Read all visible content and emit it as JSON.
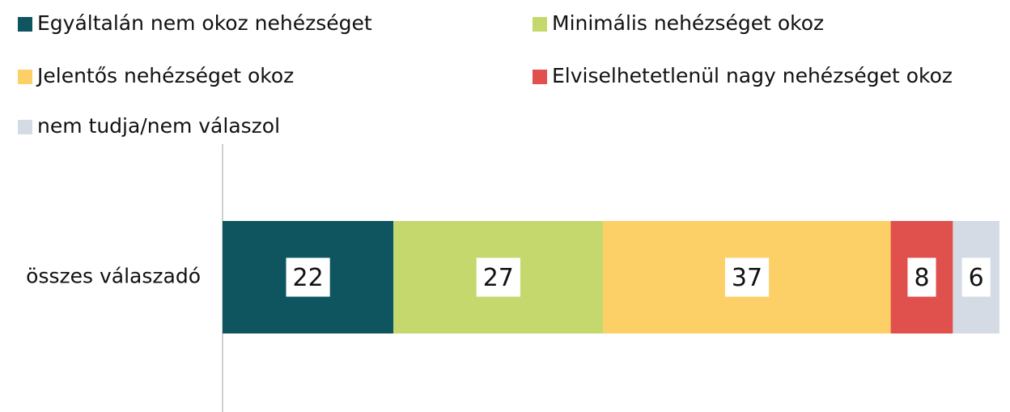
{
  "chart_data": {
    "type": "stacked-bar-horizontal",
    "categories": [
      "összes válaszadó"
    ],
    "series": [
      {
        "name": "Egyáltalán nem okoz nehézséget",
        "color": "#0e5560",
        "values": [
          22
        ]
      },
      {
        "name": "Minimális nehézséget okoz",
        "color": "#c5d86d",
        "values": [
          27
        ]
      },
      {
        "name": "Jelentős nehézséget okoz",
        "color": "#fdcf67",
        "values": [
          37
        ]
      },
      {
        "name": "Elviselhetetlenül nagy nehézséget okoz",
        "color": "#e0504d",
        "values": [
          8
        ]
      },
      {
        "name": "nem tudja/nem válaszol",
        "color": "#d5dbe5",
        "values": [
          6
        ]
      }
    ],
    "xlim": [
      0,
      100
    ],
    "legend": "top"
  }
}
